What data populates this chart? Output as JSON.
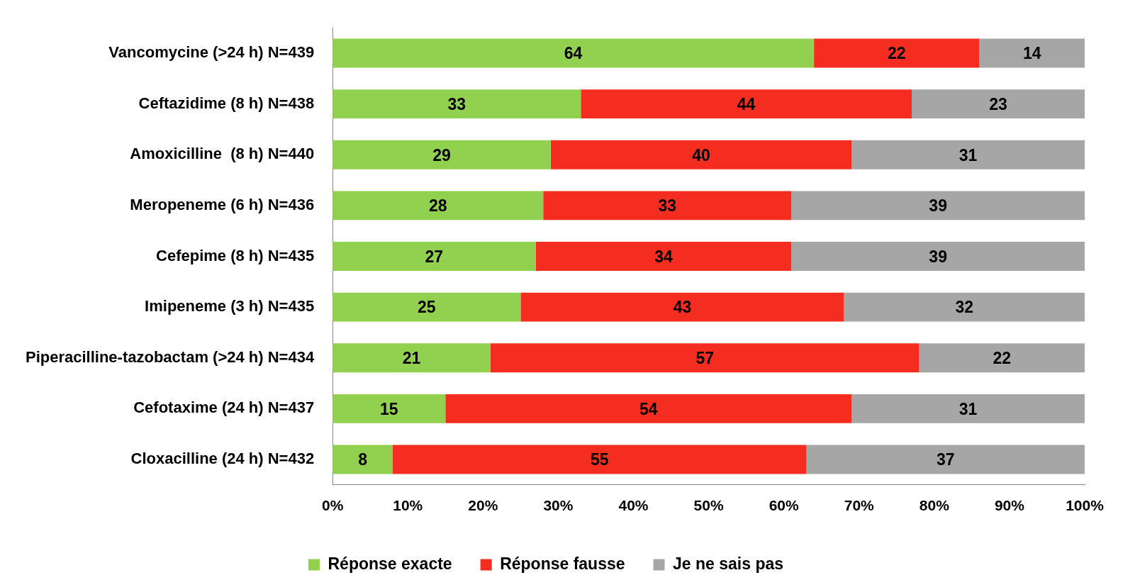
{
  "chart_data": {
    "type": "bar",
    "orientation": "horizontal",
    "stacked": true,
    "data_labels": true,
    "legend": "bottom",
    "grid": false,
    "categories": [
      "Vancomycine (>24 h) N=439",
      "Ceftazidime (8 h) N=438",
      "Amoxicilline  (8 h) N=440",
      "Meropeneme (6 h) N=436",
      "Cefepime (8 h) N=435",
      "Imipeneme (3 h) N=435",
      "Piperacilline-tazobactam (>24 h) N=434",
      "Cefotaxime (24 h) N=437",
      "Cloxacilline (24 h) N=432"
    ],
    "series": [
      {
        "name": "Réponse exacte",
        "color": "#92d050",
        "values": [
          64,
          33,
          29,
          28,
          27,
          25,
          21,
          15,
          8
        ]
      },
      {
        "name": "Réponse fausse",
        "color": "#f52d20",
        "values": [
          22,
          44,
          40,
          33,
          34,
          43,
          57,
          54,
          55
        ]
      },
      {
        "name": "Je ne sais pas",
        "color": "#a6a6a6",
        "values": [
          14,
          23,
          31,
          39,
          39,
          32,
          22,
          31,
          37
        ]
      }
    ],
    "xlim": [
      0,
      100
    ],
    "xticks": [
      {
        "value": 0,
        "label": "0%"
      },
      {
        "value": 10,
        "label": "10%"
      },
      {
        "value": 20,
        "label": "20%"
      },
      {
        "value": 30,
        "label": "30%"
      },
      {
        "value": 40,
        "label": "40%"
      },
      {
        "value": 50,
        "label": "50%"
      },
      {
        "value": 60,
        "label": "60%"
      },
      {
        "value": 70,
        "label": "70%"
      },
      {
        "value": 80,
        "label": "80%"
      },
      {
        "value": 90,
        "label": "90%"
      },
      {
        "value": 100,
        "label": "100%"
      }
    ]
  }
}
